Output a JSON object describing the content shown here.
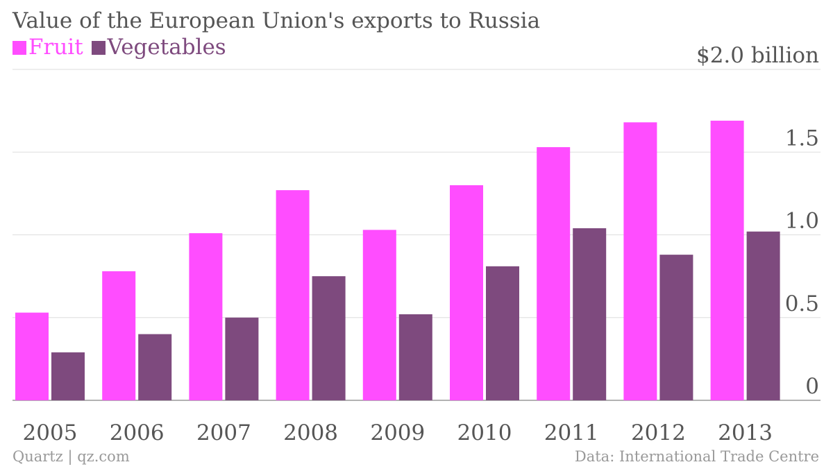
{
  "chart_data": {
    "type": "bar",
    "title": "Value of the European Union's exports to Russia",
    "categories": [
      "2005",
      "2006",
      "2007",
      "2008",
      "2009",
      "2010",
      "2011",
      "2012",
      "2013"
    ],
    "series": [
      {
        "name": "Fruit",
        "color": "#ff4dff",
        "values": [
          0.53,
          0.78,
          1.01,
          1.27,
          1.03,
          1.3,
          1.53,
          1.68,
          1.69
        ]
      },
      {
        "name": "Vegetables",
        "color": "#7e4a7e",
        "values": [
          0.29,
          0.4,
          0.5,
          0.75,
          0.52,
          0.81,
          1.04,
          0.88,
          1.02
        ]
      }
    ],
    "ylim": [
      0,
      2.0
    ],
    "yticks": [
      {
        "value": 0,
        "label": "0"
      },
      {
        "value": 0.5,
        "label": "0.5"
      },
      {
        "value": 1.0,
        "label": "1.0"
      },
      {
        "value": 1.5,
        "label": "1.5"
      },
      {
        "value": 2.0,
        "label": "$2.0 billion"
      }
    ],
    "xlabel": "",
    "ylabel": "",
    "grid": true,
    "legend_position": "top-left"
  },
  "footer": {
    "source_left": "Quartz | qz.com",
    "source_right": "Data: International Trade Centre"
  }
}
